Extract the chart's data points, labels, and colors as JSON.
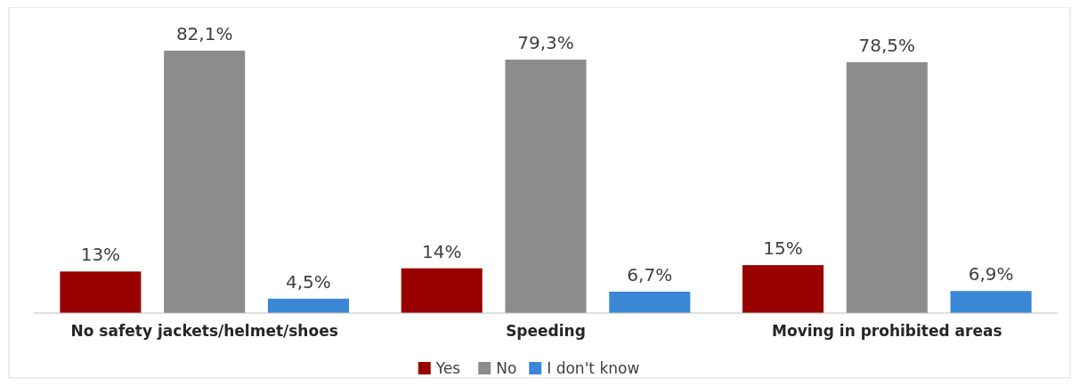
{
  "chart_data": {
    "type": "bar",
    "categories": [
      "No safety jackets/helmet/shoes",
      "Speeding",
      "Moving in prohibited areas"
    ],
    "series": [
      {
        "name": "Yes",
        "color": "#990000",
        "values": [
          13,
          14,
          15
        ],
        "value_labels": [
          "13%",
          "14%",
          "15%"
        ]
      },
      {
        "name": "No",
        "color": "#8c8c8c",
        "values": [
          82.1,
          79.3,
          78.5
        ],
        "value_labels": [
          "82,1%",
          "79,3%",
          "78,5%"
        ]
      },
      {
        "name": "I don't know",
        "color": "#3a87d6",
        "values": [
          4.5,
          6.7,
          6.9
        ],
        "value_labels": [
          "4,5%",
          "6,7%",
          "6,9%"
        ]
      }
    ],
    "legend": "bottom",
    "grid": false
  }
}
